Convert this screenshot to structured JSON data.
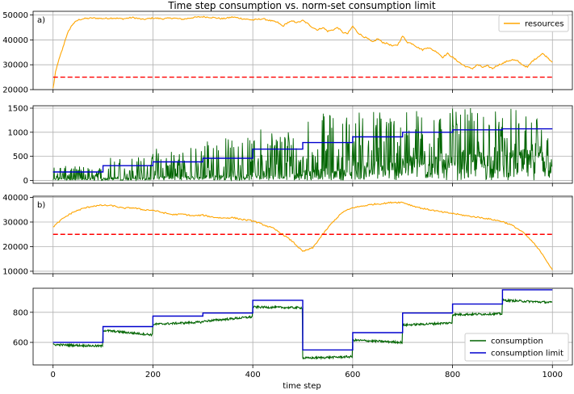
{
  "figure": {
    "title": "Time step consumption vs. norm-set consumption limit",
    "xlabel": "time step"
  },
  "colors": {
    "resources": "#ffa500",
    "threshold": "#ff0000",
    "consumption": "#006400",
    "limit": "#0000cd",
    "grid": "#b0b0b0"
  },
  "chart_data": [
    {
      "type": "line",
      "panel": "a-resources",
      "tag": "a)",
      "xlim": [
        -40,
        1040
      ],
      "ylim": [
        20000,
        51500
      ],
      "x_ticks": [
        0,
        200,
        400,
        600,
        800,
        1000
      ],
      "y_ticks": [
        20000,
        30000,
        40000,
        50000
      ],
      "y_tick_labels": [
        "20000",
        "30000",
        "40000",
        "50000"
      ],
      "grid": true,
      "legend_position": "top-right",
      "legend": [
        "resources"
      ],
      "series": [
        {
          "name": "resources",
          "style": "solid",
          "x": [
            0,
            5,
            10,
            15,
            20,
            25,
            30,
            35,
            40,
            50,
            60,
            80,
            100,
            120,
            140,
            160,
            180,
            200,
            220,
            240,
            260,
            280,
            300,
            320,
            340,
            360,
            380,
            400,
            420,
            440,
            450,
            460,
            470,
            480,
            490,
            500,
            510,
            520,
            530,
            540,
            550,
            560,
            570,
            580,
            590,
            600,
            610,
            620,
            630,
            640,
            650,
            660,
            670,
            680,
            690,
            700,
            710,
            720,
            730,
            740,
            750,
            760,
            770,
            780,
            790,
            800,
            810,
            820,
            830,
            840,
            850,
            860,
            870,
            880,
            890,
            900,
            910,
            920,
            930,
            940,
            950,
            960,
            970,
            980,
            990,
            1000
          ],
          "y": [
            20500,
            27000,
            31000,
            34000,
            37000,
            40500,
            43000,
            45000,
            46500,
            48000,
            48500,
            48800,
            48600,
            48800,
            48500,
            49000,
            48200,
            48800,
            48500,
            48800,
            48300,
            49000,
            49300,
            49000,
            48500,
            49200,
            48500,
            48000,
            48500,
            47500,
            47000,
            45500,
            47000,
            47500,
            47000,
            47800,
            46500,
            45000,
            44000,
            45000,
            43500,
            44000,
            45000,
            43000,
            42500,
            45500,
            43000,
            41500,
            40500,
            39000,
            40500,
            39000,
            38500,
            37500,
            38000,
            41500,
            39000,
            38500,
            37000,
            36000,
            37000,
            36000,
            35000,
            33000,
            34500,
            33000,
            31500,
            30000,
            29000,
            28500,
            30000,
            29000,
            29500,
            28500,
            29800,
            30500,
            31500,
            32000,
            31500,
            30000,
            29000,
            31500,
            33000,
            34500,
            33000,
            31000
          ]
        },
        {
          "name": "",
          "style": "dashed",
          "x": [
            0,
            1000
          ],
          "y": [
            25000,
            25000
          ]
        }
      ]
    },
    {
      "type": "line",
      "panel": "a-consumption",
      "tag": "",
      "xlim": [
        -40,
        1040
      ],
      "ylim": [
        -60,
        1550
      ],
      "x_ticks": [
        0,
        200,
        400,
        600,
        800,
        1000
      ],
      "y_ticks": [
        0,
        500,
        1000,
        1500
      ],
      "y_tick_labels": [
        "0",
        "500",
        "1000",
        "1500"
      ],
      "grid": true,
      "legend_position": "none",
      "legend": [],
      "series": [
        {
          "name": "",
          "style": "spiky",
          "x": [
            0,
            100,
            200,
            300,
            400,
            500,
            600,
            700,
            800,
            900,
            1000
          ],
          "base": [
            40,
            60,
            90,
            120,
            160,
            250,
            420,
            560,
            620,
            650
          ],
          "amp": [
            300,
            500,
            700,
            900,
            1100,
            1400,
            1500,
            1500,
            1500,
            1500
          ]
        },
        {
          "name": "",
          "style": "step",
          "x": [
            0,
            100,
            200,
            300,
            400,
            500,
            600,
            700,
            800,
            900,
            1000
          ],
          "y": [
            175,
            305,
            385,
            460,
            650,
            785,
            905,
            1000,
            1050,
            1070,
            1070
          ]
        }
      ]
    },
    {
      "type": "line",
      "panel": "b-resources",
      "tag": "b)",
      "xlim": [
        -40,
        1040
      ],
      "ylim": [
        9000,
        40500
      ],
      "x_ticks": [
        0,
        200,
        400,
        600,
        800,
        1000
      ],
      "y_ticks": [
        10000,
        20000,
        30000,
        40000
      ],
      "y_tick_labels": [
        "10000",
        "20000",
        "30000",
        "40000"
      ],
      "grid": true,
      "legend_position": "none",
      "legend": [],
      "series": [
        {
          "name": "",
          "style": "solid",
          "x": [
            0,
            20,
            40,
            60,
            80,
            100,
            120,
            140,
            160,
            180,
            200,
            220,
            240,
            260,
            280,
            300,
            320,
            340,
            360,
            380,
            400,
            420,
            440,
            460,
            480,
            500,
            520,
            540,
            560,
            580,
            600,
            620,
            640,
            660,
            680,
            700,
            720,
            740,
            760,
            780,
            800,
            820,
            840,
            860,
            880,
            900,
            920,
            940,
            960,
            980,
            1000
          ],
          "y": [
            28000,
            31500,
            34000,
            35500,
            36500,
            36800,
            36600,
            35600,
            35800,
            35000,
            34800,
            33800,
            33000,
            33200,
            32500,
            32800,
            32000,
            31600,
            31800,
            31000,
            30500,
            29000,
            27500,
            25000,
            22000,
            18000,
            19500,
            25000,
            30000,
            34000,
            35800,
            36500,
            37200,
            37500,
            38000,
            38000,
            36600,
            35500,
            34800,
            34000,
            33500,
            32800,
            32200,
            31700,
            31000,
            30200,
            28600,
            26000,
            22000,
            17000,
            10500
          ]
        },
        {
          "name": "",
          "style": "dashed",
          "x": [
            0,
            1000
          ],
          "y": [
            25000,
            25000
          ]
        }
      ]
    },
    {
      "type": "line",
      "panel": "b-consumption",
      "tag": "",
      "xlim": [
        -40,
        1040
      ],
      "ylim": [
        450,
        960
      ],
      "x_ticks": [
        0,
        200,
        400,
        600,
        800,
        1000
      ],
      "x_tick_labels": [
        "0",
        "200",
        "400",
        "600",
        "800",
        "1000"
      ],
      "y_ticks": [
        600,
        800
      ],
      "y_tick_labels": [
        "600",
        "800"
      ],
      "grid": true,
      "legend_position": "bottom-right",
      "legend": [
        "consumption",
        "consumption limit"
      ],
      "series": [
        {
          "name": "consumption",
          "style": "noisy",
          "x": [
            0,
            100,
            200,
            300,
            400,
            500,
            600,
            700,
            800,
            900,
            1000
          ],
          "start": [
            585,
            680,
            720,
            740,
            835,
            495,
            615,
            715,
            785,
            880
          ],
          "end": [
            575,
            650,
            735,
            770,
            830,
            505,
            600,
            730,
            790,
            865
          ]
        },
        {
          "name": "consumption limit",
          "style": "step",
          "x": [
            0,
            100,
            200,
            300,
            400,
            500,
            600,
            700,
            800,
            900,
            1000
          ],
          "y": [
            600,
            705,
            775,
            795,
            880,
            550,
            665,
            795,
            855,
            950,
            950
          ]
        }
      ]
    }
  ]
}
